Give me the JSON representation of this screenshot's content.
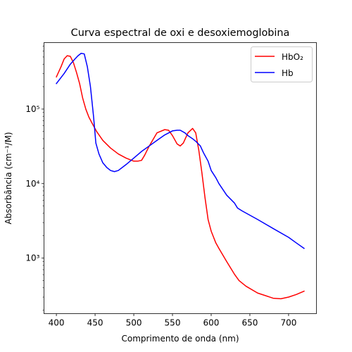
{
  "chart_data": {
    "type": "line",
    "title": "Curva espectral de oxi e desoxiemoglobina",
    "xlabel": "Comprimento de onda (nm)",
    "ylabel": "Absorbância (cm⁻¹/M)",
    "xlim": [
      384,
      736
    ],
    "ylim": [
      180,
      780000
    ],
    "yscale": "log",
    "xticks": [
      400,
      450,
      500,
      550,
      600,
      650,
      700
    ],
    "yticks": [
      {
        "value": 1000,
        "label": "10³"
      },
      {
        "value": 10000,
        "label": "10⁴"
      },
      {
        "value": 100000,
        "label": "10⁵"
      }
    ],
    "grid": false,
    "legend": "top-right",
    "series": [
      {
        "name": "HbO₂",
        "color": "#ff0000",
        "x": [
          400,
          406,
          410,
          414,
          418,
          422,
          426,
          430,
          434,
          438,
          442,
          446,
          452,
          460,
          470,
          480,
          490,
          500,
          505,
          510,
          514,
          520,
          530,
          540,
          545,
          550,
          556,
          560,
          564,
          570,
          576,
          580,
          584,
          588,
          592,
          596,
          600,
          606,
          610,
          620,
          630,
          636,
          645,
          660,
          680,
          690,
          700,
          710,
          720
        ],
        "y": [
          270000,
          370000,
          470000,
          520000,
          510000,
          420000,
          310000,
          220000,
          140000,
          100000,
          78000,
          65000,
          50000,
          38000,
          30000,
          25000,
          22000,
          20000,
          20000,
          20500,
          24000,
          32000,
          48000,
          53000,
          52000,
          44000,
          34000,
          32000,
          35000,
          48000,
          55000,
          48000,
          28000,
          14000,
          6500,
          3300,
          2300,
          1600,
          1350,
          900,
          610,
          500,
          420,
          340,
          290,
          285,
          300,
          325,
          360
        ]
      },
      {
        "name": "Hb",
        "color": "#0000ff",
        "x": [
          400,
          410,
          418,
          424,
          428,
          432,
          436,
          440,
          444,
          448,
          451,
          455,
          460,
          465,
          470,
          475,
          480,
          490,
          500,
          510,
          520,
          530,
          540,
          550,
          556,
          560,
          566,
          570,
          576,
          580,
          586,
          590,
          596,
          600,
          606,
          610,
          620,
          630,
          634,
          640,
          660,
          680,
          700,
          710,
          720
        ],
        "y": [
          220000,
          300000,
          400000,
          470000,
          520000,
          560000,
          550000,
          370000,
          200000,
          80000,
          35000,
          25000,
          19000,
          16500,
          15000,
          14500,
          15000,
          18000,
          22000,
          27000,
          32000,
          38000,
          45000,
          51000,
          52000,
          52000,
          48000,
          44000,
          40000,
          37000,
          32000,
          26000,
          20000,
          15000,
          12000,
          10000,
          7000,
          5500,
          4700,
          4300,
          3300,
          2500,
          1900,
          1600,
          1350
        ]
      }
    ]
  }
}
